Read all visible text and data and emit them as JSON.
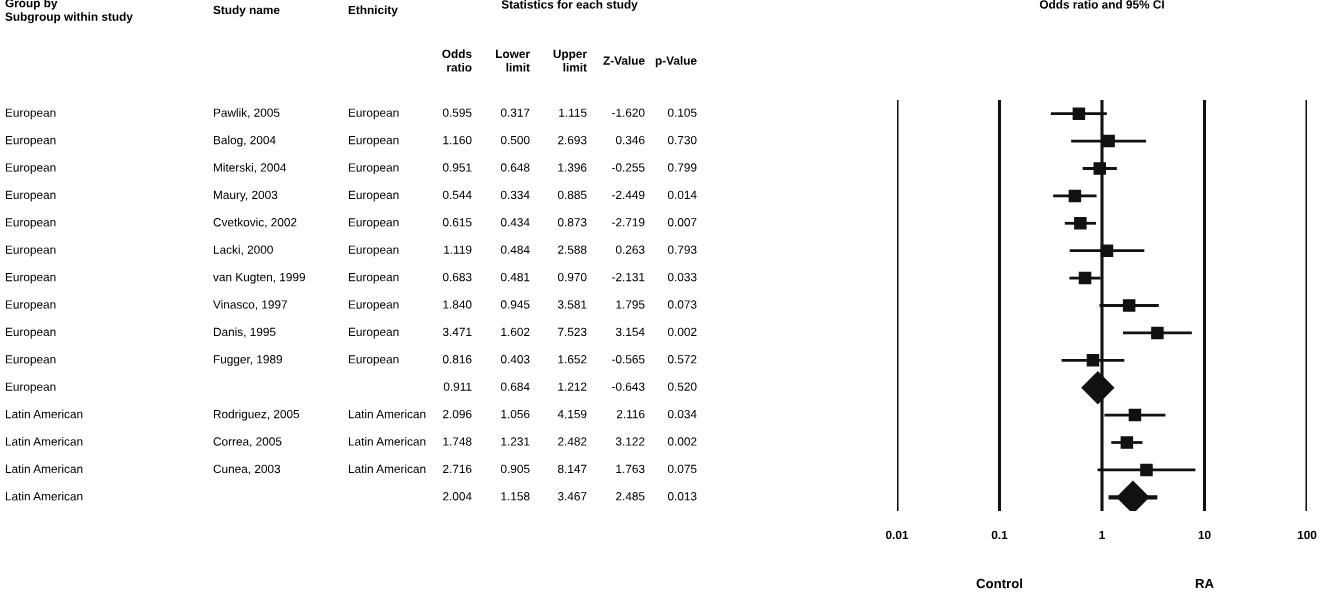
{
  "chart_data": [
    {
      "type": "other",
      "title": "Statistics for each study",
      "categories": [
        "Group by\nSubgroup within study",
        "Study name",
        "Ethnicity",
        "Odds\nratio",
        "Lower\nlimit",
        "Upper\nlimit",
        "Z-Value",
        "p-Value"
      ],
      "cell_labels": [
        [
          "European",
          "Pawlik, 2005",
          "European",
          "0.595",
          "0.317",
          "1.115",
          "-1.620",
          "0.105"
        ],
        [
          "European",
          "Balog, 2004",
          "European",
          "1.160",
          "0.500",
          "2.693",
          "0.346",
          "0.730"
        ],
        [
          "European",
          "Miterski, 2004",
          "European",
          "0.951",
          "0.648",
          "1.396",
          "-0.255",
          "0.799"
        ],
        [
          "European",
          "Maury, 2003",
          "European",
          "0.544",
          "0.334",
          "0.885",
          "-2.449",
          "0.014"
        ],
        [
          "European",
          "Cvetkovic, 2002",
          "European",
          "0.615",
          "0.434",
          "0.873",
          "-2.719",
          "0.007"
        ],
        [
          "European",
          "Lacki, 2000",
          "European",
          "1.119",
          "0.484",
          "2.588",
          "0.263",
          "0.793"
        ],
        [
          "European",
          "van Kugten, 1999",
          "European",
          "0.683",
          "0.481",
          "0.970",
          "-2.131",
          "0.033"
        ],
        [
          "European",
          "Vinasco, 1997",
          "European",
          "1.840",
          "0.945",
          "3.581",
          "1.795",
          "0.073"
        ],
        [
          "European",
          "Danis, 1995",
          "European",
          "3.471",
          "1.602",
          "7.523",
          "3.154",
          "0.002"
        ],
        [
          "European",
          "Fugger, 1989",
          "European",
          "0.816",
          "0.403",
          "1.652",
          "-0.565",
          "0.572"
        ],
        [
          "European",
          null,
          null,
          "0.911",
          "0.684",
          "1.212",
          "-0.643",
          "0.520"
        ],
        [
          "Latin American",
          "Rodriguez, 2005",
          "Latin American",
          "2.096",
          "1.056",
          "4.159",
          "2.116",
          "0.034"
        ],
        [
          "Latin American",
          "Correa, 2005",
          "Latin American",
          "1.748",
          "1.231",
          "2.482",
          "3.122",
          "0.002"
        ],
        [
          "Latin American",
          "Cunea, 2003",
          "Latin American",
          "2.716",
          "0.905",
          "8.147",
          "1.763",
          "0.075"
        ],
        [
          "Latin American",
          null,
          null,
          "2.004",
          "1.158",
          "3.467",
          "2.485",
          "0.013"
        ]
      ]
    },
    {
      "type": "scatter",
      "orientation": "horizontal",
      "title": "Odds ratio and 95% CI",
      "categories": [
        null,
        null,
        null,
        null,
        null,
        null,
        null,
        null,
        null,
        null,
        null,
        null,
        null,
        null,
        null
      ],
      "series": [
        {
          "color": "#111111",
          "marker": "square",
          "values": [
            0.595,
            1.16,
            0.951,
            0.544,
            0.615,
            1.119,
            0.683,
            1.84,
            3.471,
            0.816,
            null,
            2.096,
            1.748,
            2.716,
            null
          ],
          "errors": [
            [
              0.317,
              1.115
            ],
            [
              0.5,
              2.693
            ],
            [
              0.648,
              1.396
            ],
            [
              0.334,
              0.885
            ],
            [
              0.434,
              0.873
            ],
            [
              0.484,
              2.588
            ],
            [
              0.481,
              0.97
            ],
            [
              0.945,
              3.581
            ],
            [
              1.602,
              7.523
            ],
            [
              0.403,
              1.652
            ],
            null,
            [
              1.056,
              4.159
            ],
            [
              1.231,
              2.482
            ],
            [
              0.905,
              8.147
            ],
            null
          ]
        },
        {
          "color": "#111111",
          "marker": "diamond",
          "values": [
            null,
            null,
            null,
            null,
            null,
            null,
            null,
            null,
            null,
            null,
            0.911,
            null,
            null,
            null,
            2.004
          ],
          "errors": [
            null,
            null,
            null,
            null,
            null,
            null,
            null,
            null,
            null,
            null,
            [
              0.684,
              1.212
            ],
            null,
            null,
            null,
            [
              1.158,
              3.467
            ]
          ]
        }
      ],
      "log": "x",
      "xlim": [
        0.01,
        100
      ],
      "xticks": [
        0.01,
        0.1,
        1,
        10,
        100
      ],
      "grid": "x",
      "annotations": [
        "Control",
        "RA"
      ]
    }
  ]
}
